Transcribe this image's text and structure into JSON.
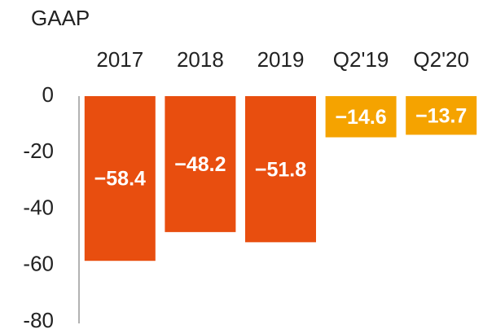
{
  "chart_data": {
    "type": "bar",
    "title": "GAAP",
    "categories": [
      "2017",
      "2018",
      "2019",
      "Q2'19",
      "Q2'20"
    ],
    "values": [
      -58.4,
      -48.2,
      -51.8,
      -14.6,
      -13.7
    ],
    "value_labels": [
      "−58.4",
      "−48.2",
      "−51.8",
      "−14.6",
      "−13.7"
    ],
    "colors": [
      "#e84e0f",
      "#e84e0f",
      "#e84e0f",
      "#f5a300",
      "#f5a300"
    ],
    "ylim": [
      -80,
      0
    ],
    "yticks": [
      0,
      -20,
      -40,
      -60,
      -80
    ]
  }
}
